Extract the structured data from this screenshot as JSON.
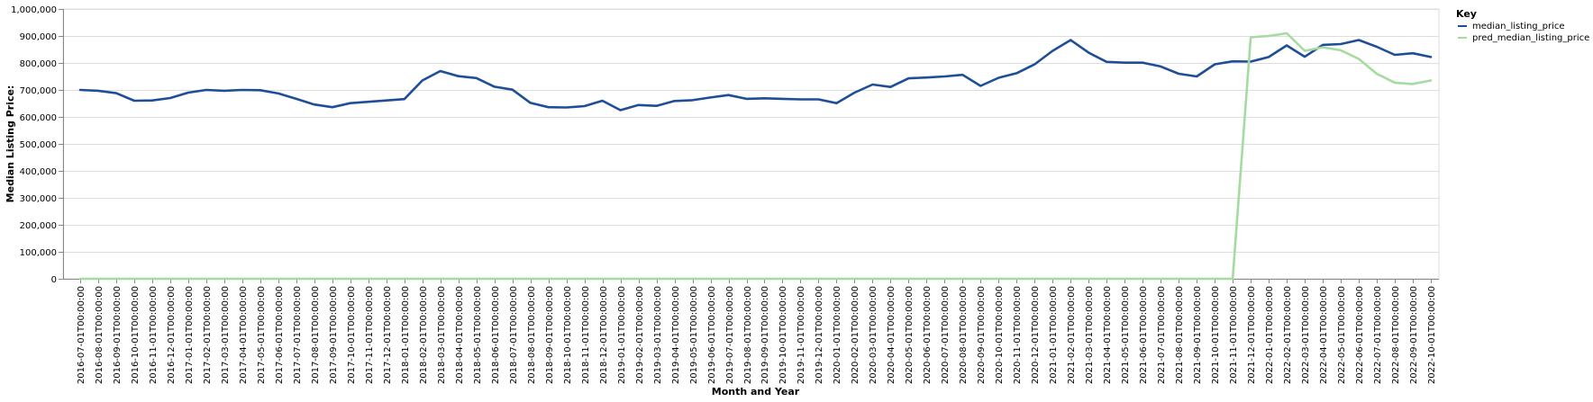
{
  "chart_data": {
    "type": "line",
    "xlabel": "Month and Year",
    "ylabel": "Median Listing Price:",
    "ylim": [
      0,
      1000000
    ],
    "yticks": [
      "0",
      "100,000",
      "200,000",
      "300,000",
      "400,000",
      "500,000",
      "600,000",
      "700,000",
      "800,000",
      "900,000",
      "1,000,000"
    ],
    "grid": true,
    "legend_title": "Key",
    "legend_position": "top-right",
    "x": [
      "2016-07-01T00:00:00",
      "2016-08-01T00:00:00",
      "2016-09-01T00:00:00",
      "2016-10-01T00:00:00",
      "2016-11-01T00:00:00",
      "2016-12-01T00:00:00",
      "2017-01-01T00:00:00",
      "2017-02-01T00:00:00",
      "2017-03-01T00:00:00",
      "2017-04-01T00:00:00",
      "2017-05-01T00:00:00",
      "2017-06-01T00:00:00",
      "2017-07-01T00:00:00",
      "2017-08-01T00:00:00",
      "2017-09-01T00:00:00",
      "2017-10-01T00:00:00",
      "2017-11-01T00:00:00",
      "2017-12-01T00:00:00",
      "2018-01-01T00:00:00",
      "2018-02-01T00:00:00",
      "2018-03-01T00:00:00",
      "2018-04-01T00:00:00",
      "2018-05-01T00:00:00",
      "2018-06-01T00:00:00",
      "2018-07-01T00:00:00",
      "2018-08-01T00:00:00",
      "2018-09-01T00:00:00",
      "2018-10-01T00:00:00",
      "2018-11-01T00:00:00",
      "2018-12-01T00:00:00",
      "2019-01-01T00:00:00",
      "2019-02-01T00:00:00",
      "2019-03-01T00:00:00",
      "2019-04-01T00:00:00",
      "2019-05-01T00:00:00",
      "2019-06-01T00:00:00",
      "2019-07-01T00:00:00",
      "2019-08-01T00:00:00",
      "2019-09-01T00:00:00",
      "2019-10-01T00:00:00",
      "2019-11-01T00:00:00",
      "2019-12-01T00:00:00",
      "2020-01-01T00:00:00",
      "2020-02-01T00:00:00",
      "2020-03-01T00:00:00",
      "2020-04-01T00:00:00",
      "2020-05-01T00:00:00",
      "2020-06-01T00:00:00",
      "2020-07-01T00:00:00",
      "2020-08-01T00:00:00",
      "2020-09-01T00:00:00",
      "2020-10-01T00:00:00",
      "2020-11-01T00:00:00",
      "2020-12-01T00:00:00",
      "2021-01-01T00:00:00",
      "2021-02-01T00:00:00",
      "2021-03-01T00:00:00",
      "2021-04-01T00:00:00",
      "2021-05-01T00:00:00",
      "2021-06-01T00:00:00",
      "2021-07-01T00:00:00",
      "2021-08-01T00:00:00",
      "2021-09-01T00:00:00",
      "2021-10-01T00:00:00",
      "2021-11-01T00:00:00",
      "2021-12-01T00:00:00",
      "2022-01-01T00:00:00",
      "2022-02-01T00:00:00",
      "2022-03-01T00:00:00",
      "2022-04-01T00:00:00",
      "2022-05-01T00:00:00",
      "2022-06-01T00:00:00",
      "2022-07-01T00:00:00",
      "2022-08-01T00:00:00",
      "2022-09-01T00:00:00",
      "2022-10-01T00:00:00"
    ],
    "series": [
      {
        "name": "median_listing_price",
        "color": "#1f4e99",
        "values": [
          700000,
          697000,
          688000,
          660000,
          661000,
          670000,
          690000,
          700000,
          697000,
          700000,
          699000,
          687000,
          667000,
          646000,
          636000,
          651000,
          656000,
          661000,
          666000,
          735000,
          770000,
          751000,
          744000,
          712000,
          701000,
          652000,
          636000,
          635000,
          640000,
          660000,
          625000,
          644000,
          641000,
          659000,
          662000,
          672000,
          681000,
          667000,
          669000,
          667000,
          665000,
          665000,
          651000,
          690000,
          720000,
          711000,
          743000,
          746000,
          750000,
          756000,
          715000,
          745000,
          762000,
          795000,
          845000,
          885000,
          838000,
          804000,
          801000,
          801000,
          787000,
          760000,
          750000,
          795000,
          806000,
          805000,
          822000,
          865000,
          823000,
          867000,
          870000,
          885000,
          860000,
          830000,
          836000,
          822000
        ]
      },
      {
        "name": "pred_median_listing_price",
        "color": "#a6dba0",
        "values": [
          0,
          0,
          0,
          0,
          0,
          0,
          0,
          0,
          0,
          0,
          0,
          0,
          0,
          0,
          0,
          0,
          0,
          0,
          0,
          0,
          0,
          0,
          0,
          0,
          0,
          0,
          0,
          0,
          0,
          0,
          0,
          0,
          0,
          0,
          0,
          0,
          0,
          0,
          0,
          0,
          0,
          0,
          0,
          0,
          0,
          0,
          0,
          0,
          0,
          0,
          0,
          0,
          0,
          0,
          0,
          0,
          0,
          0,
          0,
          0,
          0,
          0,
          0,
          0,
          0,
          895000,
          900000,
          910000,
          845000,
          858000,
          847000,
          815000,
          760000,
          727000,
          722000,
          735000
        ]
      }
    ]
  }
}
